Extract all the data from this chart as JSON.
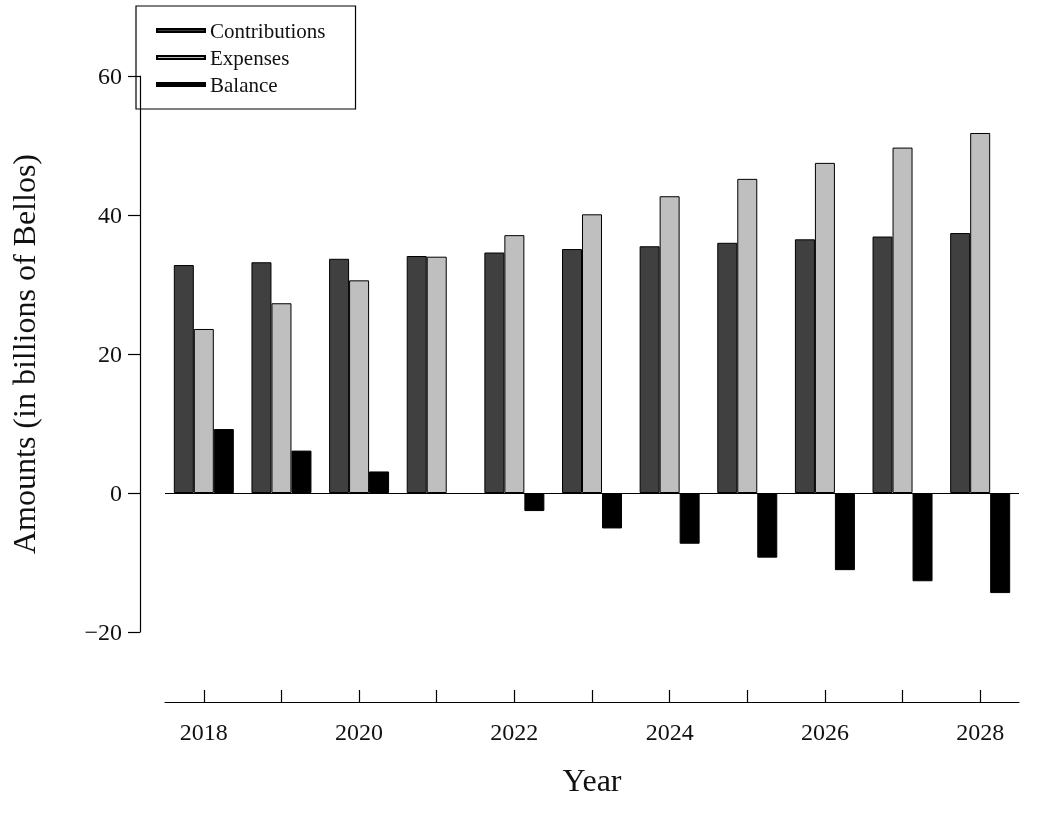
{
  "chart_data": {
    "type": "bar",
    "xlabel": "Year",
    "ylabel": "Amounts (in billions of Bellos)",
    "categories": [
      "2018",
      null,
      "2020",
      null,
      "2022",
      null,
      "2024",
      null,
      "2026",
      null,
      "2028"
    ],
    "series": [
      {
        "name": "Contributions",
        "color": "#404040",
        "values": [
          32.8,
          33.2,
          33.7,
          34.1,
          34.6,
          35.1,
          35.5,
          36.0,
          36.5,
          36.9,
          37.4
        ]
      },
      {
        "name": "Expenses",
        "color": "#bfbfbf",
        "values": [
          23.6,
          27.3,
          30.6,
          34.0,
          37.1,
          40.1,
          42.7,
          45.2,
          47.5,
          49.7,
          51.8
        ]
      },
      {
        "name": "Balance",
        "color": "#000000",
        "values": [
          9.2,
          6.1,
          3.1,
          null,
          -2.6,
          -5.1,
          -7.3,
          -9.3,
          -11.1,
          -12.7,
          -14.4
        ]
      }
    ],
    "ylim": [
      -20,
      60
    ],
    "yticks": [
      -20,
      0,
      20,
      40,
      60
    ],
    "ref_lines": [
      {
        "axis": "y",
        "value": 0,
        "color": "#000000"
      }
    ],
    "legend": "top left"
  }
}
